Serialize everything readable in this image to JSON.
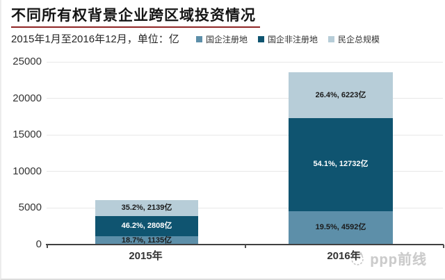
{
  "header": {
    "title": "不同所有权背景企业跨区域投资情况",
    "subtitle": "2015年1月至2016年12月，单位：亿"
  },
  "legend": {
    "items": [
      {
        "label": "国企注册地",
        "color": "#5d8fa9"
      },
      {
        "label": "国企非注册地",
        "color": "#0f5470"
      },
      {
        "label": "民企总规模",
        "color": "#b7cdd8"
      }
    ]
  },
  "chart_data": {
    "type": "bar",
    "stacked": true,
    "title": "不同所有权背景企业跨区域投资情况",
    "subtitle": "2015年1月至2016年12月，单位：亿",
    "unit": "亿",
    "categories": [
      "2015年",
      "2016年"
    ],
    "series": [
      {
        "name": "国企注册地",
        "color": "#5d8fa9",
        "text_color": "#1a1a1a",
        "values": [
          1135,
          4592
        ],
        "percents": [
          "18.7%",
          "19.5%"
        ],
        "data_labels": [
          "18.7%, 1135亿",
          "19.5%, 4592亿"
        ]
      },
      {
        "name": "国企非注册地",
        "color": "#0f5470",
        "text_color": "#ffffff",
        "values": [
          2808,
          12732
        ],
        "percents": [
          "46.2%",
          "54.1%"
        ],
        "data_labels": [
          "46.2%, 2808亿",
          "54.1%, 12732亿"
        ]
      },
      {
        "name": "民企总规模",
        "color": "#b7cdd8",
        "text_color": "#1a1a1a",
        "values": [
          2139,
          6223
        ],
        "percents": [
          "35.2%",
          "26.4%"
        ],
        "data_labels": [
          "35.2%, 2139亿",
          "26.4%, 6223亿"
        ]
      }
    ],
    "totals": [
      6082,
      23547
    ],
    "y_ticks": [
      0,
      5000,
      10000,
      15000,
      20000,
      25000
    ],
    "ylim": [
      0,
      25000
    ],
    "grid": true,
    "legend_position": "top-right"
  },
  "watermark": {
    "text": "ppp前线",
    "icon": "cat-logo"
  },
  "colors": {
    "title_underline": "#8e2323",
    "axis": "#404040",
    "gridline": "#e7e7e7",
    "watermark_text": "#cbcbcb"
  }
}
